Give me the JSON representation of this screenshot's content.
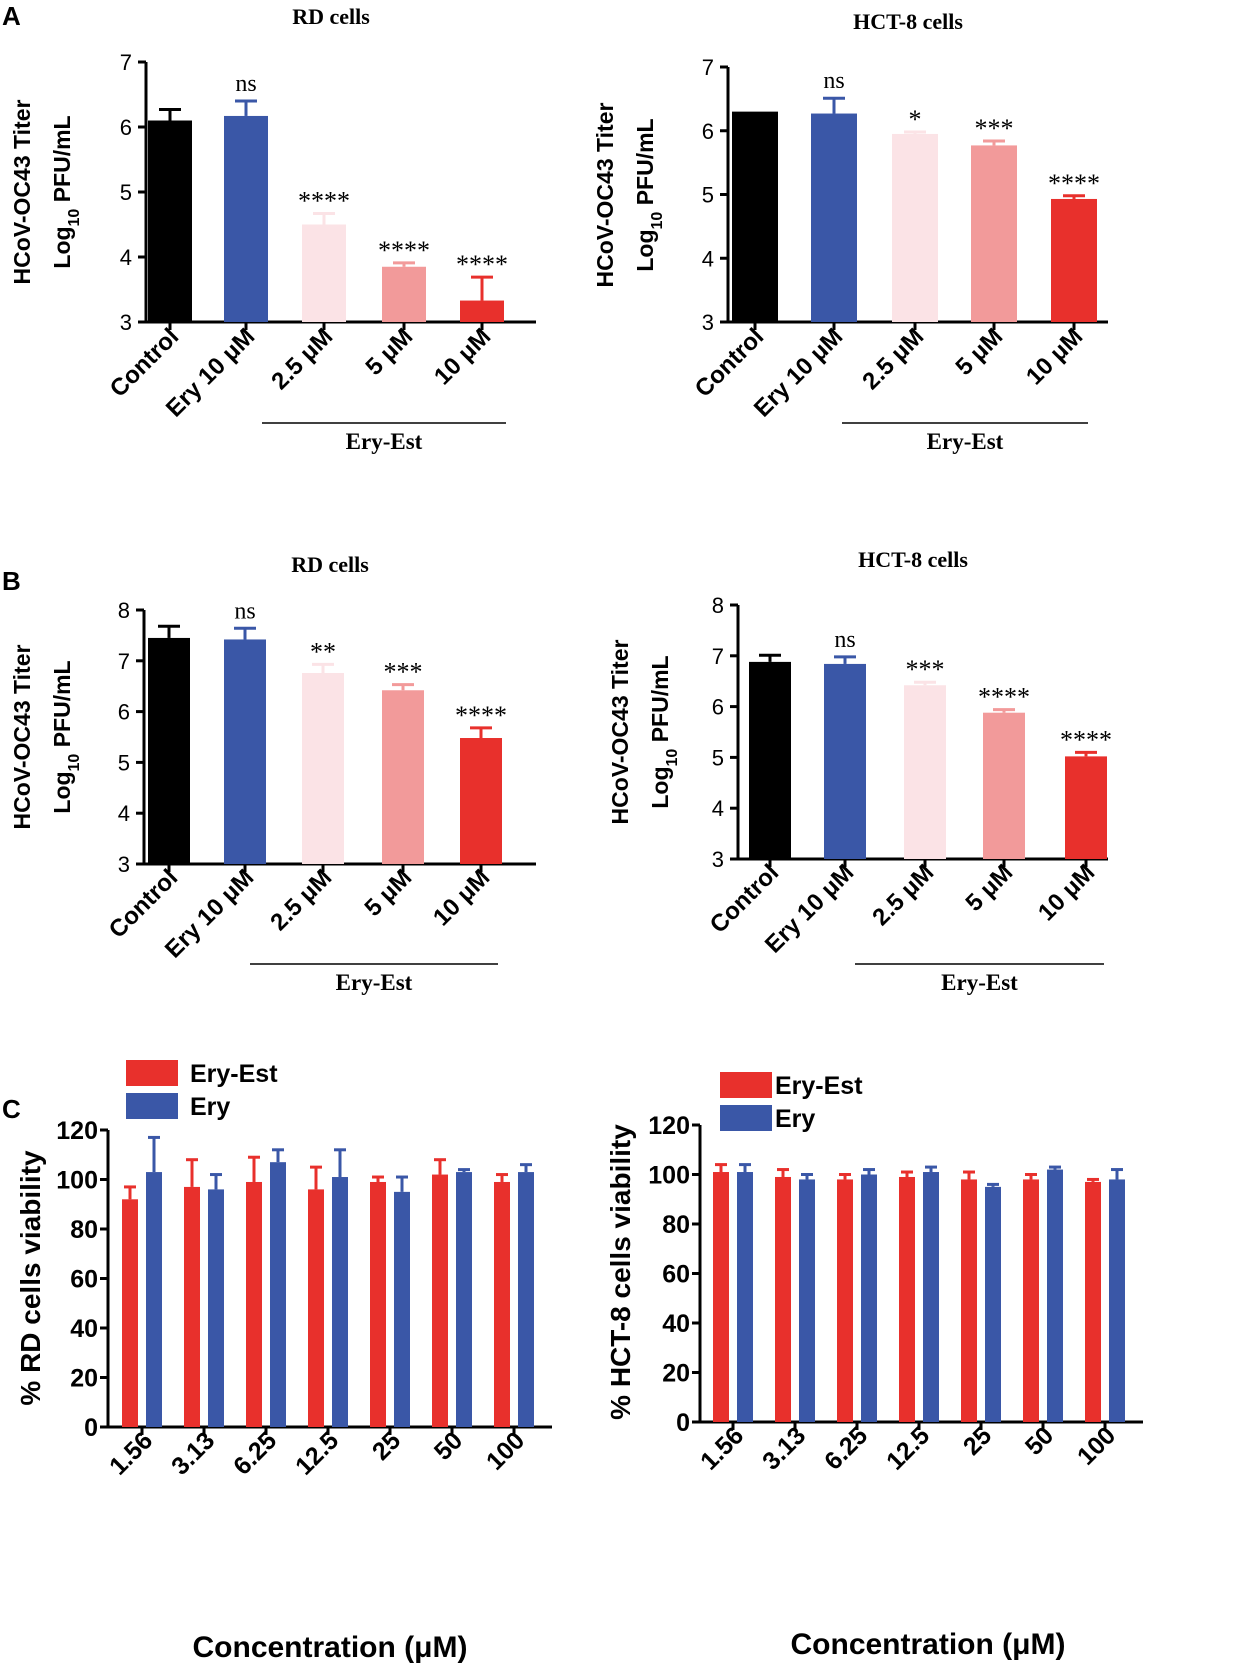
{
  "colors": {
    "control": "#000000",
    "ery": "#3a57a7",
    "ery_est_low": "#fbe3e6",
    "ery_est_mid": "#f29a9a",
    "ery_est_high": "#e8302c",
    "axis": "#000000"
  },
  "panels": [
    {
      "letter": "A"
    },
    {
      "letter": "B"
    },
    {
      "letter": "C"
    }
  ],
  "chart_data": [
    {
      "panel": "A",
      "type": "bar",
      "title": "RD cells",
      "categories": [
        "Control",
        "Ery 10 μM",
        "2.5 μM",
        "5 μM",
        "10 μM"
      ],
      "values": [
        6.1,
        6.17,
        4.5,
        3.85,
        3.33
      ],
      "errors": [
        0.17,
        0.23,
        0.17,
        0.06,
        0.36
      ],
      "significance": [
        "",
        "ns",
        "****",
        "****",
        "****"
      ],
      "ylabel_line1": "HCoV-OC43 Titer",
      "ylabel_log": "Log",
      "ylabel_sub": "10",
      "ylabel_unit": " PFU/mL",
      "group_label": "Ery-Est",
      "ylim": [
        3,
        7
      ],
      "yticks": [
        "3",
        "4",
        "5",
        "6",
        "7"
      ]
    },
    {
      "panel": "A",
      "type": "bar",
      "title": "HCT-8 cells",
      "categories": [
        "Control",
        "Ery 10 μM",
        "2.5 μM",
        "5 μM",
        "10 μM"
      ],
      "values": [
        6.3,
        6.27,
        5.95,
        5.77,
        4.93
      ],
      "errors": [
        0.0,
        0.24,
        0.03,
        0.07,
        0.05
      ],
      "significance": [
        "",
        "ns",
        "*",
        "***",
        "****"
      ],
      "ylabel_line1": "HCoV-OC43 Titer",
      "ylabel_log": "Log",
      "ylabel_sub": "10",
      "ylabel_unit": " PFU/mL",
      "group_label": "Ery-Est",
      "ylim": [
        3,
        7
      ],
      "yticks": [
        "3",
        "4",
        "5",
        "6",
        "7"
      ]
    },
    {
      "panel": "B",
      "type": "bar",
      "title": "RD cells",
      "categories": [
        "Control",
        "Ery 10 μM",
        "2.5 μM",
        "5 μM",
        "10 μM"
      ],
      "values": [
        7.45,
        7.42,
        6.76,
        6.42,
        5.48
      ],
      "errors": [
        0.23,
        0.22,
        0.17,
        0.11,
        0.2
      ],
      "significance": [
        "",
        "ns",
        "**",
        "***",
        "****"
      ],
      "ylabel_line1": "HCoV-OC43 Titer",
      "ylabel_log": "Log",
      "ylabel_sub": "10",
      "ylabel_unit": " PFU/mL",
      "group_label": "Ery-Est",
      "ylim": [
        3,
        8
      ],
      "yticks": [
        "3",
        "4",
        "5",
        "6",
        "7",
        "8"
      ]
    },
    {
      "panel": "B",
      "type": "bar",
      "title": "HCT-8 cells",
      "categories": [
        "Control",
        "Ery 10 μM",
        "2.5 μM",
        "5 μM",
        "10 μM"
      ],
      "values": [
        6.88,
        6.84,
        6.42,
        5.88,
        5.02
      ],
      "errors": [
        0.13,
        0.14,
        0.06,
        0.06,
        0.08
      ],
      "significance": [
        "",
        "ns",
        "***",
        "****",
        "****"
      ],
      "ylabel_line1": "HCoV-OC43 Titer",
      "ylabel_log": "Log",
      "ylabel_sub": "10",
      "ylabel_unit": " PFU/mL",
      "group_label": "Ery-Est",
      "ylim": [
        3,
        8
      ],
      "yticks": [
        "3",
        "4",
        "5",
        "6",
        "7",
        "8"
      ]
    },
    {
      "panel": "C",
      "type": "bar",
      "categories": [
        "1.56",
        "3.13",
        "6.25",
        "12.5",
        "25",
        "50",
        "100"
      ],
      "series": [
        {
          "name": "Ery-Est",
          "values": [
            92,
            97,
            99,
            96,
            99,
            102,
            99
          ],
          "errors": [
            5,
            11,
            10,
            9,
            2,
            6,
            3
          ]
        },
        {
          "name": "Ery",
          "values": [
            103,
            96,
            107,
            101,
            95,
            103,
            103
          ],
          "errors": [
            14,
            6,
            5,
            11,
            6,
            1,
            3
          ]
        }
      ],
      "xlabel": "Concentration (μM)",
      "ylabel": "% RD cells viability",
      "ylim": [
        0,
        120
      ],
      "yticks": [
        "0",
        "20",
        "40",
        "60",
        "80",
        "100",
        "120"
      ]
    },
    {
      "panel": "C",
      "type": "bar",
      "categories": [
        "1.56",
        "3.13",
        "6.25",
        "12.5",
        "25",
        "50",
        "100"
      ],
      "series": [
        {
          "name": "Ery-Est",
          "values": [
            101,
            99,
            98,
            99,
            98,
            98,
            97
          ],
          "errors": [
            3,
            3,
            2,
            2,
            3,
            2,
            1
          ]
        },
        {
          "name": "Ery",
          "values": [
            101,
            98,
            100,
            101,
            95,
            102,
            98
          ],
          "errors": [
            3,
            2,
            2,
            2,
            1,
            1,
            4
          ]
        }
      ],
      "xlabel": "Concentration (μM)",
      "ylabel": "% HCT-8 cells viability",
      "ylim": [
        0,
        120
      ],
      "yticks": [
        "0",
        "20",
        "40",
        "60",
        "80",
        "100",
        "120"
      ]
    }
  ]
}
